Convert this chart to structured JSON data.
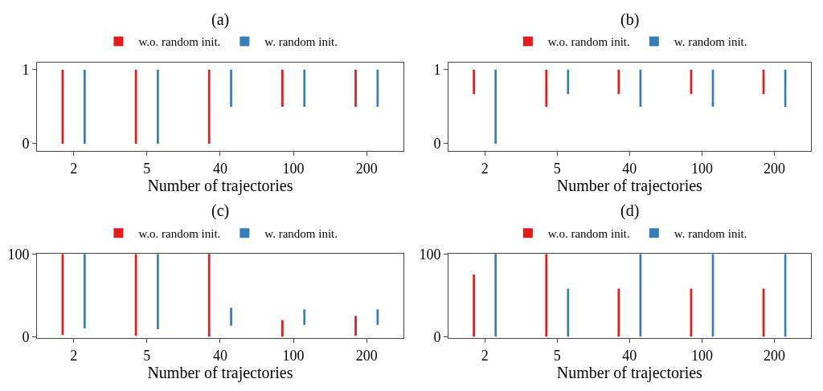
{
  "chart_data": [
    {
      "type": "bar",
      "title": "(a)",
      "xlabel": "Number of trajectories",
      "categories": [
        "2",
        "5",
        "40",
        "100",
        "200"
      ],
      "legend": "top",
      "ylim": [
        -0.1,
        1.1
      ],
      "yticks": [
        0,
        1
      ],
      "series": [
        {
          "name": "w.o. random init.",
          "color": "#e41a1c",
          "base": [
            0,
            0,
            0,
            0.5,
            0.5
          ],
          "values": [
            1,
            1,
            1,
            0.5,
            0.5
          ]
        },
        {
          "name": "w. random init.",
          "color": "#377eb8",
          "base": [
            0,
            0,
            0.5,
            0.5,
            0.5
          ],
          "values": [
            1,
            1,
            0.5,
            0.5,
            0.5
          ]
        }
      ]
    },
    {
      "type": "bar",
      "title": "(b)",
      "xlabel": "Number of trajectories",
      "categories": [
        "2",
        "5",
        "40",
        "100",
        "200"
      ],
      "legend": "top",
      "ylim": [
        -0.1,
        1.1
      ],
      "yticks": [
        0,
        1
      ],
      "series": [
        {
          "name": "w.o. random init.",
          "color": "#e41a1c",
          "base": [
            0.67,
            0.5,
            0.67,
            0.67,
            0.67
          ],
          "values": [
            0.33,
            0.5,
            0.33,
            0.33,
            0.33
          ]
        },
        {
          "name": "w. random init.",
          "color": "#377eb8",
          "base": [
            0,
            0.67,
            0.5,
            0.5,
            0.5
          ],
          "values": [
            1,
            0.33,
            0.5,
            0.5,
            0.5
          ]
        }
      ]
    },
    {
      "type": "bar",
      "title": "(c)",
      "xlabel": "Number of trajectories",
      "categories": [
        "2",
        "5",
        "40",
        "100",
        "200"
      ],
      "legend": "top",
      "ylim": [
        -2,
        100
      ],
      "yticks": [
        0,
        100
      ],
      "series": [
        {
          "name": "w.o. random init.",
          "color": "#e41a1c",
          "base": [
            2,
            1,
            0,
            0,
            1
          ],
          "values": [
            98,
            99,
            100,
            20,
            24
          ]
        },
        {
          "name": "w. random init.",
          "color": "#377eb8",
          "base": [
            10,
            9,
            13,
            14,
            14
          ],
          "values": [
            90,
            91,
            22,
            19,
            19
          ]
        }
      ]
    },
    {
      "type": "bar",
      "title": "(d)",
      "xlabel": "Number of trajectories",
      "categories": [
        "2",
        "5",
        "40",
        "100",
        "200"
      ],
      "legend": "top",
      "ylim": [
        -2,
        100
      ],
      "yticks": [
        0,
        100
      ],
      "series": [
        {
          "name": "w.o. random init.",
          "color": "#e41a1c",
          "base": [
            0,
            0,
            0,
            0,
            0
          ],
          "values": [
            75,
            100,
            58,
            58,
            58
          ]
        },
        {
          "name": "w. random init.",
          "color": "#377eb8",
          "base": [
            0,
            0,
            0,
            0,
            0
          ],
          "values": [
            100,
            58,
            100,
            100,
            100
          ]
        }
      ]
    }
  ]
}
